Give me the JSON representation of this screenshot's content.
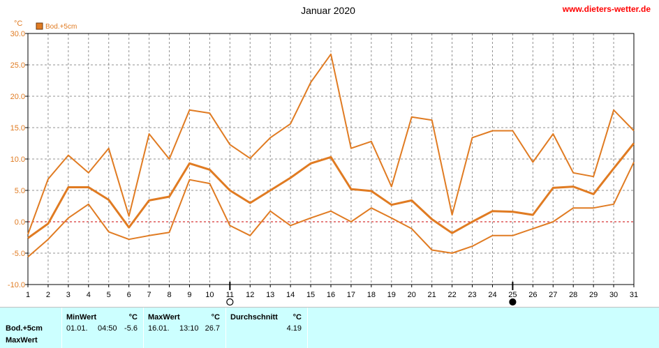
{
  "site_watermark": "www.dieters-wetter.de",
  "colors": {
    "series": "#e07b22",
    "grid": "#909090",
    "zero_line": "#cc0000",
    "watermark": "#ff0000",
    "axis_text": "#e07b22",
    "panel_bg": "#ccffff"
  },
  "chart_data": {
    "type": "line",
    "title": "Januar 2020",
    "ylabel": "°C",
    "xlabel": "",
    "ylim": [
      -10,
      30
    ],
    "yticks": [
      "30.0",
      "25.0",
      "20.0",
      "15.0",
      "10.0",
      "5.0",
      "0.0",
      "-5.0",
      "-10.0"
    ],
    "x": [
      1,
      2,
      3,
      4,
      5,
      6,
      7,
      8,
      9,
      10,
      11,
      12,
      13,
      14,
      15,
      16,
      17,
      18,
      19,
      20,
      21,
      22,
      23,
      24,
      25,
      26,
      27,
      28,
      29,
      30,
      31
    ],
    "xtick_labels": [
      "1",
      "2",
      "3",
      "4",
      "5",
      "6",
      "7",
      "8",
      "9",
      "10",
      "11",
      "12",
      "13",
      "14",
      "15",
      "16",
      "17",
      "18",
      "19",
      "20",
      "21",
      "22",
      "23",
      "24",
      "25",
      "26",
      "27",
      "28",
      "29",
      "30",
      "31"
    ],
    "legend": {
      "label": "Bod.+5cm",
      "position": "top-left"
    },
    "grid": true,
    "series": [
      {
        "name": "Bod.+5cm",
        "role": "max",
        "values": [
          -2.0,
          6.8,
          10.6,
          7.8,
          11.7,
          0.9,
          14.0,
          10.0,
          17.8,
          17.3,
          12.3,
          10.1,
          13.4,
          15.6,
          22.2,
          26.7,
          11.7,
          12.8,
          5.6,
          16.7,
          16.2,
          1.1,
          13.4,
          14.5,
          14.5,
          9.5,
          14.0,
          7.8,
          7.2,
          17.8,
          14.5
        ]
      },
      {
        "name": "Bod.+5cm",
        "role": "avg",
        "values": [
          -2.6,
          -0.3,
          5.5,
          5.5,
          3.5,
          -0.9,
          3.4,
          4.0,
          9.3,
          8.3,
          5.0,
          3.0,
          5.0,
          7.0,
          9.3,
          10.3,
          5.2,
          4.9,
          2.7,
          3.4,
          0.4,
          -1.8,
          0.0,
          1.7,
          1.6,
          1.1,
          5.4,
          5.6,
          4.4,
          8.5,
          12.5
        ]
      },
      {
        "name": "Bod.+5cm",
        "role": "min",
        "values": [
          -5.6,
          -2.8,
          0.6,
          2.8,
          -1.6,
          -2.8,
          -2.2,
          -1.7,
          6.7,
          6.1,
          -0.6,
          -2.2,
          1.7,
          -0.6,
          0.6,
          1.7,
          0.0,
          2.2,
          0.6,
          -1.1,
          -4.5,
          -5.0,
          -3.9,
          -2.2,
          -2.2,
          -1.1,
          0.0,
          2.2,
          2.2,
          2.8,
          9.5
        ]
      }
    ],
    "moon_markers": [
      {
        "day": 11,
        "phase": "full-moon"
      },
      {
        "day": 25,
        "phase": "new-moon"
      }
    ]
  },
  "stats_panel": {
    "row_labels": [
      "Bod.+5cm",
      "MaxWert"
    ],
    "min": {
      "header": "MinWert",
      "unit": "°C",
      "date": "01.01.",
      "time": "04:50",
      "value": "-5.6"
    },
    "max": {
      "header": "MaxWert",
      "unit": "°C",
      "date": "16.01.",
      "time": "13:10",
      "value": "26.7"
    },
    "avg": {
      "header": "Durchschnitt",
      "unit": "°C",
      "value": "4.19"
    }
  }
}
